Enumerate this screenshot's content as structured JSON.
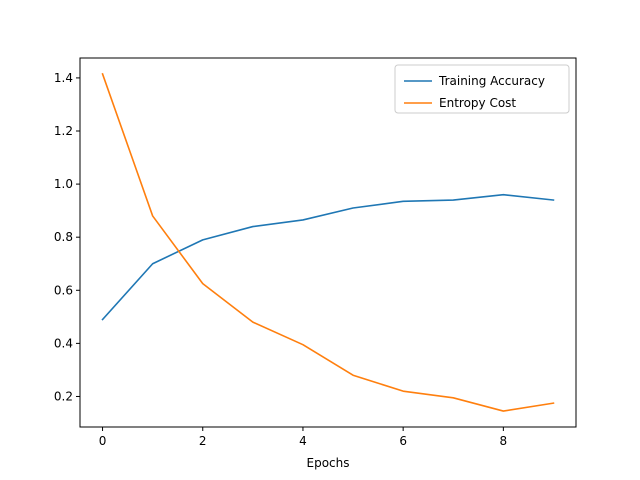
{
  "chart_data": {
    "type": "line",
    "title": "",
    "xlabel": "Epochs",
    "ylabel": "",
    "x": [
      0,
      1,
      2,
      3,
      4,
      5,
      6,
      7,
      8,
      9
    ],
    "xlim": [
      -0.45,
      9.45
    ],
    "ylim": [
      0.085,
      1.475
    ],
    "xticks": [
      0,
      2,
      4,
      6,
      8
    ],
    "yticks": [
      0.2,
      0.4,
      0.6,
      0.8,
      1.0,
      1.2,
      1.4
    ],
    "xtick_labels": [
      "0",
      "2",
      "4",
      "6",
      "8"
    ],
    "ytick_labels": [
      "0.2",
      "0.4",
      "0.6",
      "0.8",
      "1.0",
      "1.2",
      "1.4"
    ],
    "grid": false,
    "legend_position": "top-right",
    "series": [
      {
        "name": "Training Accuracy",
        "color": "#1f77b4",
        "values": [
          0.49,
          0.7,
          0.79,
          0.84,
          0.865,
          0.91,
          0.935,
          0.94,
          0.96,
          0.94
        ]
      },
      {
        "name": "Entropy Cost",
        "color": "#ff7f0e",
        "values": [
          1.415,
          0.88,
          0.625,
          0.48,
          0.395,
          0.28,
          0.22,
          0.195,
          0.145,
          0.175
        ]
      }
    ]
  }
}
